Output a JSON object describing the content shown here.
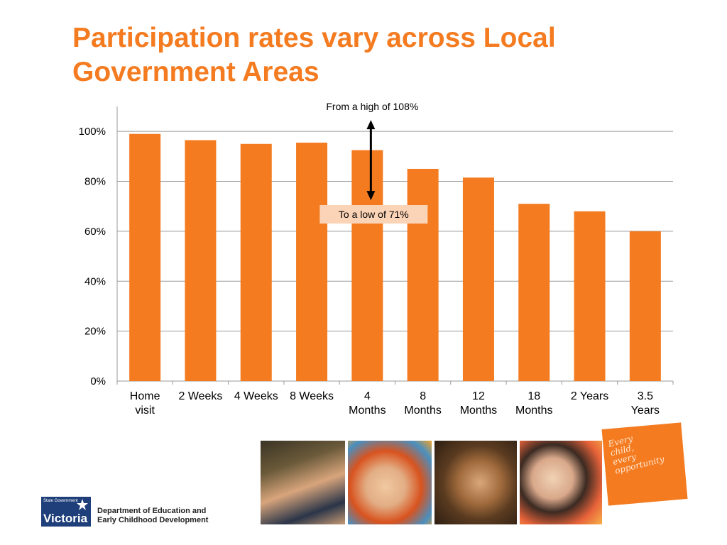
{
  "slide": {
    "title_line1": "Participation rates vary across Local",
    "title_line2": "Government Areas",
    "accent_color": "#f47b20"
  },
  "chart_data": {
    "type": "bar",
    "categories": [
      [
        "Home",
        "visit"
      ],
      [
        "2 Weeks"
      ],
      [
        "4 Weeks"
      ],
      [
        "8 Weeks"
      ],
      [
        "4",
        "Months"
      ],
      [
        "8",
        "Months"
      ],
      [
        "12",
        "Months"
      ],
      [
        "18",
        "Months"
      ],
      [
        "2 Years"
      ],
      [
        "3.5",
        "Years"
      ]
    ],
    "values": [
      99,
      96.5,
      95,
      95.5,
      92.5,
      85,
      81.5,
      71,
      68,
      60
    ],
    "ylim": [
      0,
      110
    ],
    "yticks": [
      0,
      20,
      40,
      60,
      80,
      100
    ],
    "ytick_labels": [
      "0%",
      "20%",
      "40%",
      "60%",
      "80%",
      "100%"
    ],
    "grid": true,
    "bar_color": "#f47b20",
    "annotations": {
      "high_text": "From a high of 108%",
      "low_text": "To a low of 71%",
      "arrow_category_index": 4,
      "arrow_from": 104,
      "arrow_to": 73
    }
  },
  "footer": {
    "logo_top_text": "State Government",
    "logo_main_text": "Victoria",
    "department_line1": "Department of Education and",
    "department_line2": "Early Childhood Development",
    "tagline": [
      "Every",
      "child,",
      "every",
      "opportunity"
    ],
    "photo_icons": [
      "father-and-child-photo",
      "baby-photo",
      "child-with-mud-photo",
      "smiling-girl-photo"
    ]
  }
}
